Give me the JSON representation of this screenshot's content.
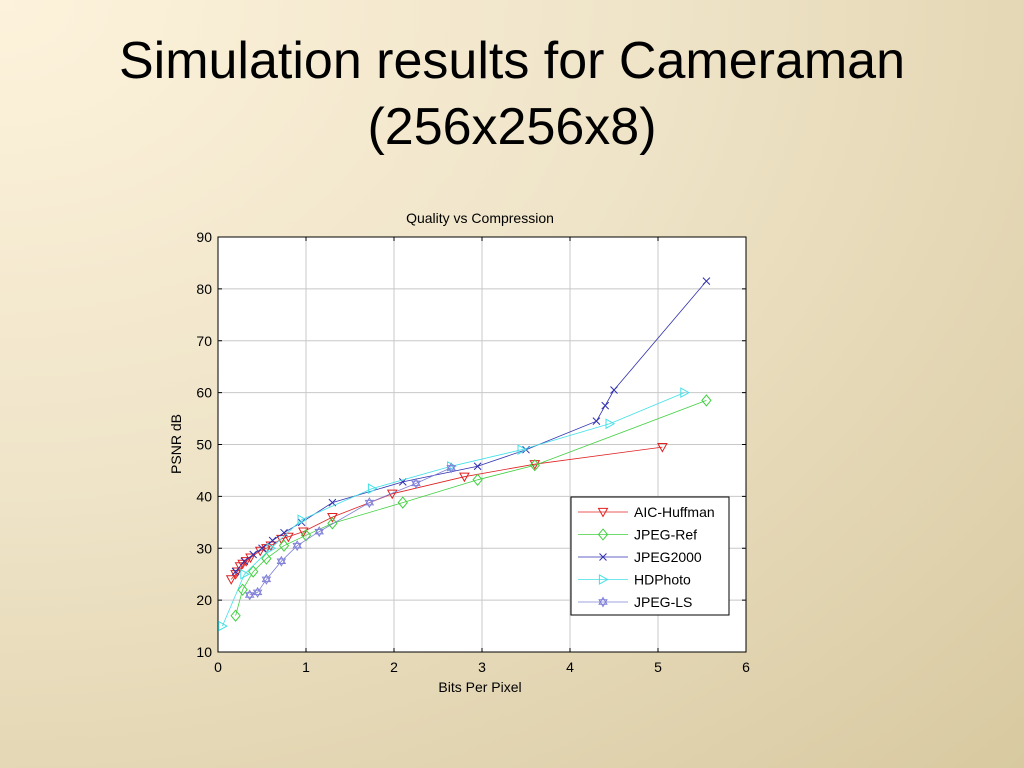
{
  "slide": {
    "title_line1": "Simulation results for Cameraman",
    "title_line2": "(256x256x8)"
  },
  "chart_data": {
    "type": "line",
    "title": "Quality vs Compression",
    "xlabel": "Bits Per Pixel",
    "ylabel": "PSNR dB",
    "xlim": [
      0,
      6
    ],
    "ylim": [
      10,
      90
    ],
    "xticks": [
      0,
      1,
      2,
      3,
      4,
      5,
      6
    ],
    "yticks": [
      10,
      20,
      30,
      40,
      50,
      60,
      70,
      80,
      90
    ],
    "grid": true,
    "legend_position": "bottom-right",
    "series": [
      {
        "name": "AIC-Huffman",
        "color": "#e02020",
        "marker": "triangle-down",
        "points": [
          [
            0.15,
            24
          ],
          [
            0.2,
            25
          ],
          [
            0.22,
            25.5
          ],
          [
            0.25,
            26.5
          ],
          [
            0.28,
            27
          ],
          [
            0.32,
            27.5
          ],
          [
            0.37,
            28.2
          ],
          [
            0.48,
            29.5
          ],
          [
            0.55,
            30
          ],
          [
            0.6,
            30.5
          ],
          [
            0.72,
            31.8
          ],
          [
            0.8,
            32.2
          ],
          [
            0.97,
            33.2
          ],
          [
            1.3,
            36
          ],
          [
            1.98,
            40.5
          ],
          [
            2.8,
            43.8
          ],
          [
            3.6,
            46.2
          ],
          [
            5.05,
            49.5
          ]
        ]
      },
      {
        "name": "JPEG-Ref",
        "color": "#40d040",
        "marker": "diamond",
        "points": [
          [
            0.2,
            17
          ],
          [
            0.28,
            22
          ],
          [
            0.4,
            25.5
          ],
          [
            0.55,
            28
          ],
          [
            0.75,
            30.5
          ],
          [
            1.0,
            32.5
          ],
          [
            1.3,
            34.8
          ],
          [
            2.1,
            38.8
          ],
          [
            2.95,
            43.2
          ],
          [
            3.6,
            46
          ],
          [
            5.55,
            58.5
          ]
        ]
      },
      {
        "name": "JPEG2000",
        "color": "#3030b0",
        "marker": "x",
        "points": [
          [
            0.2,
            25.5
          ],
          [
            0.3,
            27.5
          ],
          [
            0.4,
            28.8
          ],
          [
            0.5,
            30
          ],
          [
            0.62,
            31.5
          ],
          [
            0.75,
            33
          ],
          [
            0.95,
            35
          ],
          [
            1.3,
            38.8
          ],
          [
            2.1,
            42.8
          ],
          [
            2.95,
            45.8
          ],
          [
            3.5,
            49
          ],
          [
            4.3,
            54.5
          ],
          [
            4.4,
            57.5
          ],
          [
            4.5,
            60.5
          ],
          [
            5.55,
            81.5
          ]
        ]
      },
      {
        "name": "HDPhoto",
        "color": "#40e0e8",
        "marker": "triangle-right",
        "points": [
          [
            0.05,
            15
          ],
          [
            0.3,
            25
          ],
          [
            0.6,
            30
          ],
          [
            0.95,
            35.5
          ],
          [
            1.75,
            41.5
          ],
          [
            2.65,
            45.8
          ],
          [
            3.45,
            49
          ],
          [
            4.45,
            54
          ],
          [
            5.3,
            60
          ]
        ]
      },
      {
        "name": "JPEG-LS",
        "color": "#8080d8",
        "marker": "hexagram",
        "points": [
          [
            0.36,
            21
          ],
          [
            0.45,
            21.5
          ],
          [
            0.55,
            24
          ],
          [
            0.72,
            27.5
          ],
          [
            0.9,
            30.5
          ],
          [
            1.15,
            33.2
          ],
          [
            1.72,
            38.8
          ],
          [
            2.25,
            42.5
          ],
          [
            2.65,
            45.5
          ]
        ]
      }
    ]
  }
}
